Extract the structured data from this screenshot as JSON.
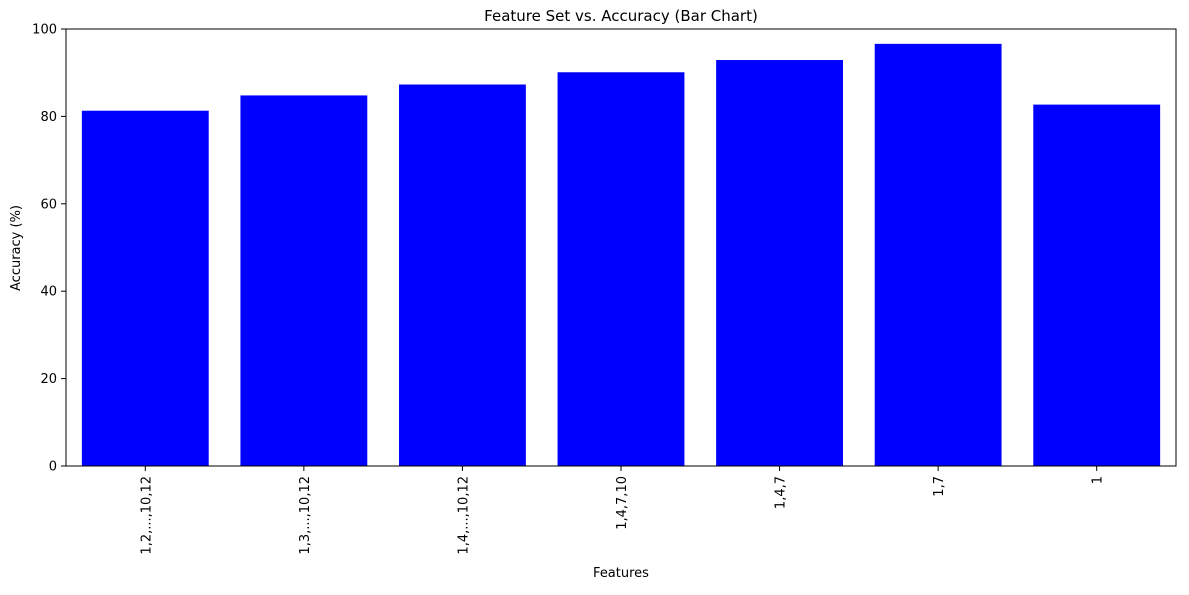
{
  "chart_data": {
    "type": "bar",
    "title": "Feature Set vs. Accuracy (Bar Chart)",
    "xlabel": "Features",
    "ylabel": "Accuracy (%)",
    "categories": [
      "1,2,...,10,12",
      "1,3,...,10,12",
      "1,4,...,10,12",
      "1,4,7,10",
      "1,4,7",
      "1,7",
      "1"
    ],
    "values": [
      81.3,
      84.8,
      87.3,
      90.1,
      92.9,
      96.6,
      82.7
    ],
    "ylim": [
      0,
      100
    ],
    "yticks": [
      0,
      20,
      40,
      60,
      80,
      100
    ],
    "bar_color": "#0000ff",
    "grid": false,
    "legend": "none"
  }
}
